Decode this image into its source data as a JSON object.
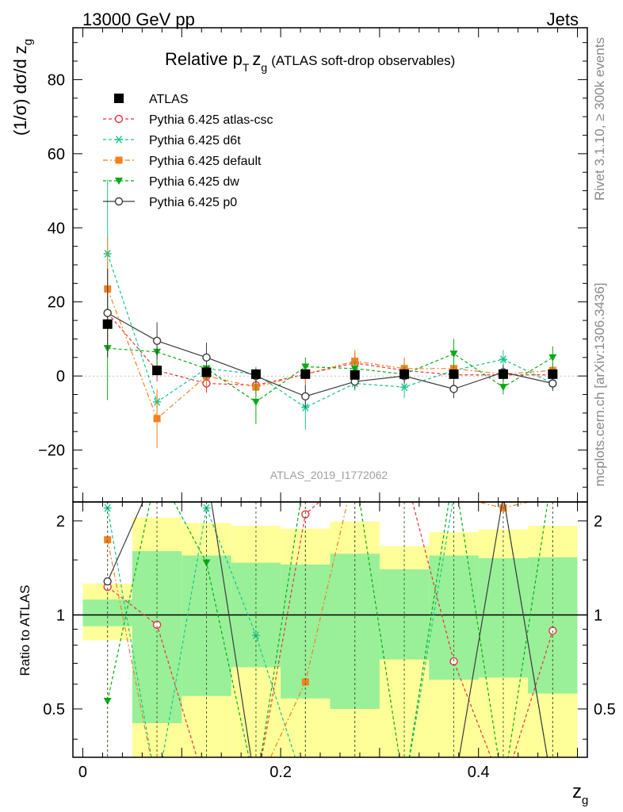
{
  "header": {
    "left": "13000 GeV pp",
    "right": "Jets"
  },
  "side_labels": {
    "top": "Rivet 3.1.10, ≥ 300k events",
    "bottom": "mcplots.cern.ch [arXiv:1306.3436]"
  },
  "watermark": "ATLAS_2019_I1772062",
  "chart_data": {
    "type": "line",
    "title_main": "Relative p",
    "title_sub": "T",
    "title_zg": "z",
    "title_zg_sub": "g",
    "title_rest": "(ATLAS soft-drop observables)",
    "ylabel_main": "(1/σ) dσ/d z",
    "ylabel_sub": "g",
    "ratio_ylabel": "Ratio to ATLAS",
    "xlabel_main": "z",
    "xlabel_sub": "g",
    "xlim": [
      -0.01,
      0.51
    ],
    "ylim": [
      -34,
      94
    ],
    "ratio_ylim": [
      0.35,
      2.3
    ],
    "x": [
      0.025,
      0.075,
      0.125,
      0.175,
      0.225,
      0.275,
      0.325,
      0.375,
      0.425,
      0.475
    ],
    "bin_edges": [
      0.0,
      0.05,
      0.1,
      0.15,
      0.2,
      0.25,
      0.3,
      0.35,
      0.4,
      0.45,
      0.5
    ],
    "yticks": [
      -20,
      0,
      20,
      40,
      60,
      80
    ],
    "xticks": [
      0,
      0.2,
      0.4
    ],
    "ratio_ticks": [
      0.5,
      1,
      2
    ],
    "data": {
      "name": "ATLAS",
      "values": [
        14,
        1.5,
        1.0,
        0.5,
        0.5,
        0.3,
        0.5,
        0.5,
        0.5,
        0.5
      ],
      "band_inner": [
        [
          0.92,
          1.12
        ],
        [
          0.45,
          1.6
        ],
        [
          0.55,
          1.55
        ],
        [
          0.68,
          1.47
        ],
        [
          0.54,
          1.45
        ],
        [
          0.5,
          1.57
        ],
        [
          0.72,
          1.4
        ],
        [
          0.62,
          1.55
        ],
        [
          0.63,
          1.52
        ],
        [
          0.56,
          1.53
        ]
      ],
      "band_outer": [
        [
          0.83,
          1.26
        ],
        [
          0.35,
          2.05
        ],
        [
          0.35,
          1.97
        ],
        [
          0.35,
          1.93
        ],
        [
          0.35,
          1.89
        ],
        [
          0.35,
          1.99
        ],
        [
          0.35,
          1.66
        ],
        [
          0.35,
          1.84
        ],
        [
          0.35,
          1.88
        ],
        [
          0.35,
          1.93
        ]
      ]
    },
    "series": [
      {
        "name": "Pythia 6.425 atlas-csc",
        "color": "#e8323c",
        "marker": "open-circle",
        "dash": "4,3",
        "values": [
          17,
          1.5,
          -2,
          -2.5,
          0.5,
          3.5,
          1.5,
          0.3,
          0.3,
          0.3
        ],
        "errors": [
          12,
          3,
          2.5,
          2.5,
          3,
          3,
          3,
          2,
          2,
          2
        ],
        "ratio": [
          1.23,
          0.93,
          0.1,
          0.1,
          2.1,
          6.0,
          6.0,
          0.71,
          0.2,
          0.89
        ]
      },
      {
        "name": "Pythia 6.425 d6t",
        "color": "#18c48a",
        "marker": "asterisk",
        "dash": "4,3",
        "values": [
          33,
          -7,
          2,
          0.5,
          -8.5,
          -2,
          -3,
          1.5,
          4.5,
          -2
        ],
        "errors": [
          20,
          3,
          3,
          2,
          6,
          2,
          3,
          3,
          2.5,
          2
        ],
        "ratio": [
          2.2,
          0.1,
          2.2,
          0.86,
          0.1,
          0.1,
          0.1,
          2.4,
          2.4,
          0.1
        ]
      },
      {
        "name": "Pythia 6.425 default",
        "color": "#f48020",
        "marker": "filled-square",
        "dash": "6,3,2,3",
        "values": [
          23.5,
          -11.5,
          0,
          -3,
          0.5,
          4,
          2,
          2,
          0.5,
          1.5
        ],
        "errors": [
          14,
          8,
          3,
          2,
          3,
          3,
          3,
          3,
          2,
          2
        ],
        "ratio": [
          1.74,
          0.1,
          0.1,
          0.1,
          0.61,
          3.2,
          2.4,
          2.4,
          2.2,
          2.4
        ]
      },
      {
        "name": "Pythia 6.425 dw",
        "color": "#0aaa16",
        "marker": "filled-triangle-down",
        "dash": "4,3",
        "values": [
          7.5,
          6.5,
          2,
          -7,
          2.5,
          2,
          0.5,
          6,
          -3,
          5
        ],
        "errors": [
          14,
          4,
          3,
          6,
          2.5,
          2,
          2,
          4,
          2,
          3
        ],
        "ratio": [
          0.53,
          4.0,
          1.47,
          0.1,
          3.5,
          4.0,
          0.1,
          3.0,
          0.1,
          3.0
        ]
      },
      {
        "name": "Pythia 6.425 p0",
        "color": "#3c3c3c",
        "marker": "open-circle",
        "dash": "",
        "values": [
          17,
          9.5,
          5,
          0,
          -5.5,
          -1.5,
          0,
          -3.5,
          1,
          -2
        ],
        "errors": [
          12,
          5,
          4,
          2,
          3,
          2,
          2,
          2.5,
          2,
          2
        ],
        "ratio": [
          1.28,
          6.0,
          6.0,
          0.1,
          0.1,
          0.1,
          0.1,
          0.1,
          2.4,
          0.1
        ]
      }
    ]
  }
}
